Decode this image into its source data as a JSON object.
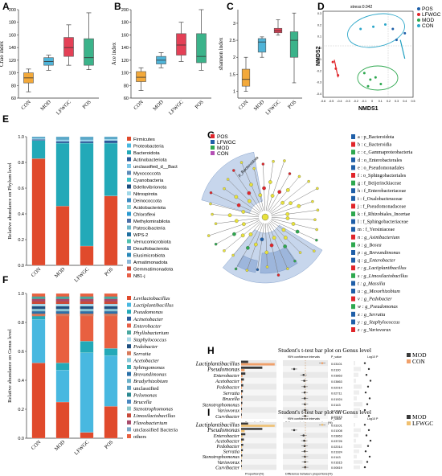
{
  "panels": {
    "A": {
      "letter": "A",
      "ylabel": "Chao index",
      "categories": [
        "CON",
        "MOD",
        "LFWGC",
        "POS"
      ],
      "colors": [
        "#f3a93a",
        "#4fb4d8",
        "#e44056",
        "#3bb38a"
      ],
      "boxes": [
        {
          "min": 70,
          "q1": 84,
          "median": 92,
          "q3": 100,
          "max": 106
        },
        {
          "min": 104,
          "q1": 112,
          "median": 118,
          "q3": 124,
          "max": 128
        },
        {
          "min": 112,
          "q1": 126,
          "median": 140,
          "q3": 156,
          "max": 176
        },
        {
          "min": 105,
          "q1": 112,
          "median": 124,
          "q3": 154,
          "max": 195
        }
      ],
      "ylim": [
        60,
        200
      ],
      "yticks": [
        60,
        80,
        100,
        120,
        140,
        160,
        180,
        200
      ]
    },
    "B": {
      "letter": "B",
      "ylabel": "Ace index",
      "categories": [
        "CON",
        "MOD",
        "LFWGC",
        "POS"
      ],
      "colors": [
        "#f3a93a",
        "#4fb4d8",
        "#e44056",
        "#3bb38a"
      ],
      "boxes": [
        {
          "min": 72,
          "q1": 86,
          "median": 93,
          "q3": 102,
          "max": 108
        },
        {
          "min": 108,
          "q1": 114,
          "median": 120,
          "q3": 126,
          "max": 132
        },
        {
          "min": 118,
          "q1": 128,
          "median": 144,
          "q3": 162,
          "max": 180
        },
        {
          "min": 104,
          "q1": 116,
          "median": 126,
          "q3": 162,
          "max": 200
        }
      ],
      "ylim": [
        60,
        200
      ],
      "yticks": [
        60,
        80,
        100,
        120,
        140,
        160,
        180,
        200
      ]
    },
    "C": {
      "letter": "C",
      "ylabel": "shannon index",
      "categories": [
        "CON",
        "MOD",
        "LFWGC",
        "POS"
      ],
      "colors": [
        "#f3a93a",
        "#4fb4d8",
        "#e44056",
        "#3bb38a"
      ],
      "boxes": [
        {
          "min": 1.0,
          "q1": 1.15,
          "median": 1.35,
          "q3": 1.65,
          "max": 2.0
        },
        {
          "min": 2.0,
          "q1": 2.15,
          "median": 2.45,
          "q3": 2.55,
          "max": 2.6
        },
        {
          "min": 2.65,
          "q1": 2.72,
          "median": 2.78,
          "q3": 2.85,
          "max": 3.1
        },
        {
          "min": 1.25,
          "q1": 2.0,
          "median": 2.5,
          "q3": 2.75,
          "max": 3.3
        }
      ],
      "ylim": [
        0.8,
        3.4
      ],
      "yticks": [
        1,
        1.5,
        2,
        2.5,
        3
      ]
    },
    "D": {
      "letter": "D",
      "stress": "stress:0.042",
      "xlabel": "NMDS1",
      "ylabel": "NMDS2",
      "legend": [
        {
          "label": "POS",
          "color": "#1f5fa8"
        },
        {
          "label": "LFWGC",
          "color": "#e0252a"
        },
        {
          "label": "MOD",
          "color": "#2ea84f"
        },
        {
          "label": "CON",
          "color": "#2ba6c9"
        }
      ],
      "xticks": [
        "-0.6",
        "-0.5",
        "-0.4",
        "-0.3",
        "-0.2",
        "-0.1",
        "0",
        "0.1",
        "0.2",
        "0.3",
        "0.4",
        "0.5"
      ],
      "yticks": [
        "0.3",
        "0.2",
        "0.1",
        "0",
        "-0.1",
        "-0.2",
        "-0.3",
        "-0.4"
      ]
    },
    "E": {
      "letter": "E",
      "ylabel": "Relative abundance on Phylum level",
      "categories": [
        "CON",
        "MOD",
        "LFWGC",
        "POS"
      ],
      "yticks": [
        "0.0",
        "0.2",
        "0.4",
        "0.6",
        "0.8",
        "1.0"
      ]
    },
    "F": {
      "letter": "F",
      "ylabel": "Relative abundance on Genus level",
      "categories": [
        "CON",
        "MOD",
        "LFWGC",
        "POS"
      ],
      "yticks": [
        "0.0",
        "0.2",
        "0.4",
        "0.6",
        "0.8",
        "1.0"
      ]
    },
    "G": {
      "letter": "G",
      "legend": [
        {
          "label": "POS",
          "color": "#e0252a"
        },
        {
          "label": "LFWGC",
          "color": "#1f5fa8"
        },
        {
          "label": "MOD",
          "color": "#2ea84f"
        },
        {
          "label": "CON",
          "color": "#b44fb4"
        }
      ],
      "clade_label": "p_Bacteroidota"
    },
    "H": {
      "letter": "H",
      "title": "Student's t-test bar plot on Genus level",
      "genera": [
        "Lactiplantibacillus",
        "Pseudomonas",
        "Enterobacter",
        "Acetobacter",
        "Pedobacter",
        "Serratia",
        "Brucella",
        "Stenotrophomonas",
        "Variovorax",
        "Curvibacter"
      ],
      "pvalues": [
        "0.03101",
        "0.0100",
        "0.03863",
        "0.03863",
        "0.02014",
        "0.02711",
        "0.01924",
        "0.0143",
        "0.01615",
        "0.00619"
      ],
      "legend": [
        {
          "label": "MOD",
          "color": "#3a3a3a"
        },
        {
          "label": "CON",
          "color": "#f0a06a"
        }
      ],
      "col1": "95% confidence intervals",
      "col2": "P_value",
      "col3": "Log10 P",
      "xlab1": "Proportion(%)",
      "xlab2": "Difference between proportions(%)"
    },
    "I": {
      "letter": "I",
      "title": "Student's t-test bar plot on Genus level",
      "genera": [
        "Lactiplantibacillus",
        "Pseudomonas",
        "Enterobacter",
        "Acetobacter",
        "Pedobacter",
        "Serratia",
        "Stenotrophomonas",
        "Variovorax",
        "Curvibacter"
      ],
      "pvalues": [
        "0.03101",
        "0.01008",
        "0.03863",
        "0.03726",
        "0.02014",
        "0.01924",
        "0.0143",
        "0.01615",
        "0.00819"
      ],
      "legend": [
        {
          "label": "MOD",
          "color": "#3a3a3a"
        },
        {
          "label": "LFWGC",
          "color": "#f0c070"
        }
      ],
      "col1": "95% confidence intervals",
      "col2": "P_value",
      "col3": "Log10 P",
      "xlab1": "Proportion(%)",
      "xlab2": "Difference between proportions(%)"
    }
  },
  "chart_data": [
    {
      "type": "box",
      "title": "",
      "ylabel": "Chao index",
      "categories": [
        "CON",
        "MOD",
        "LFWGC",
        "POS"
      ],
      "ylim": [
        60,
        200
      ],
      "series": [
        {
          "values": [
            [
              70,
              84,
              92,
              100,
              106
            ],
            [
              104,
              112,
              118,
              124,
              128
            ],
            [
              112,
              126,
              140,
              156,
              176
            ],
            [
              105,
              112,
              124,
              154,
              195
            ]
          ]
        }
      ]
    },
    {
      "type": "box",
      "title": "",
      "ylabel": "Ace index",
      "categories": [
        "CON",
        "MOD",
        "LFWGC",
        "POS"
      ],
      "ylim": [
        60,
        200
      ],
      "series": [
        {
          "values": [
            [
              72,
              86,
              93,
              102,
              108
            ],
            [
              108,
              114,
              120,
              126,
              132
            ],
            [
              118,
              128,
              144,
              162,
              180
            ],
            [
              104,
              116,
              126,
              162,
              200
            ]
          ]
        }
      ]
    },
    {
      "type": "box",
      "title": "",
      "ylabel": "shannon index",
      "categories": [
        "CON",
        "MOD",
        "LFWGC",
        "POS"
      ],
      "ylim": [
        0.8,
        3.4
      ],
      "series": [
        {
          "values": [
            [
              1.0,
              1.15,
              1.35,
              1.65,
              2.0
            ],
            [
              2.0,
              2.15,
              2.45,
              2.55,
              2.6
            ],
            [
              2.65,
              2.72,
              2.78,
              2.85,
              3.1
            ],
            [
              1.25,
              2.0,
              2.5,
              2.75,
              3.3
            ]
          ]
        }
      ]
    },
    {
      "type": "scatter",
      "title": "",
      "xlabel": "NMDS1",
      "ylabel": "NMDS2",
      "series": [
        {
          "name": "POS",
          "points": [
            [
              0.28,
              0.22
            ],
            [
              0.44,
              0.18
            ],
            [
              0.33,
              0.12
            ]
          ]
        },
        {
          "name": "LFWGC",
          "points": [
            [
              -0.52,
              -0.08
            ],
            [
              -0.48,
              -0.14
            ],
            [
              -0.45,
              -0.2
            ]
          ]
        },
        {
          "name": "MOD",
          "points": [
            [
              -0.1,
              -0.18
            ],
            [
              0.05,
              -0.22
            ],
            [
              0.12,
              -0.28
            ],
            [
              -0.05,
              -0.3
            ],
            [
              -0.02,
              -0.24
            ]
          ]
        },
        {
          "name": "CON",
          "points": [
            [
              -0.15,
              0.22
            ],
            [
              0.02,
              0.24
            ],
            [
              0.18,
              0.26
            ]
          ]
        }
      ]
    },
    {
      "type": "stacked-bar",
      "title": "",
      "ylabel": "Relative abundance on Phylum level",
      "categories": [
        "CON",
        "MOD",
        "LFWGC",
        "POS"
      ],
      "series": [
        {
          "name": "Firmicutes",
          "values": [
            0.83,
            0.46,
            0.15,
            0.54
          ]
        },
        {
          "name": "Proteobacteria",
          "values": [
            0.0,
            0.0,
            0.0,
            0.0
          ]
        },
        {
          "name": "Bacteroidota",
          "values": [
            0.14,
            0.49,
            0.8,
            0.41
          ]
        },
        {
          "name": "Actinobacteriota",
          "values": [
            0.01,
            0.015,
            0.015,
            0.02
          ]
        },
        {
          "name": "unclassified_d__Bact",
          "values": [
            0.005,
            0.01,
            0.01,
            0.01
          ]
        },
        {
          "name": "others",
          "values": [
            0.015,
            0.025,
            0.025,
            0.02
          ]
        }
      ]
    },
    {
      "type": "stacked-bar",
      "title": "",
      "ylabel": "Relative abundance on Genus level",
      "categories": [
        "CON",
        "MOD",
        "LFWGC",
        "POS"
      ],
      "series": [
        {
          "name": "Levilactobacillus",
          "values": [
            0.52,
            0.25,
            0.04,
            0.22
          ]
        },
        {
          "name": "Lactiplantibacillus",
          "values": [
            0.3,
            0.22,
            0.55,
            0.35
          ]
        },
        {
          "name": "Pseudomonas",
          "values": [
            0.03,
            0.05,
            0.08,
            0.05
          ]
        },
        {
          "name": "others",
          "values": [
            0.15,
            0.48,
            0.33,
            0.38
          ]
        }
      ]
    },
    {
      "type": "bar",
      "title": "Student's t-test bar plot on Genus level",
      "categories": [
        "Lactiplantibacillus",
        "Pseudomonas",
        "Enterobacter",
        "Acetobacter",
        "Pedobacter",
        "Serratia",
        "Brucella",
        "Stenotrophomonas",
        "Variovorax",
        "Curvibacter"
      ],
      "series": [
        {
          "name": "MOD",
          "values": [
            4,
            12,
            2.4,
            1.6,
            1.2,
            1.0,
            0.8,
            0.7,
            0.5,
            0.4
          ]
        },
        {
          "name": "CON",
          "values": [
            19,
            2,
            0.8,
            0.6,
            0.5,
            0.4,
            0.3,
            0.3,
            0.2,
            0.2
          ]
        }
      ]
    },
    {
      "type": "bar",
      "title": "Student's t-test bar plot on Genus level",
      "categories": [
        "Lactiplantibacillus",
        "Pseudomonas",
        "Enterobacter",
        "Acetobacter",
        "Pedobacter",
        "Serratia",
        "Stenotrophomonas",
        "Variovorax",
        "Curvibacter"
      ],
      "series": [
        {
          "name": "MOD",
          "values": [
            4,
            12,
            2.4,
            1.6,
            1.2,
            1.0,
            0.7,
            0.5,
            0.4
          ]
        },
        {
          "name": "LFWGC",
          "values": [
            19,
            2,
            0.8,
            0.6,
            0.5,
            0.4,
            0.3,
            0.2,
            0.2
          ]
        }
      ]
    }
  ],
  "phylum_legend": [
    {
      "name": "Firmicutes",
      "color": "#e04a2c"
    },
    {
      "name": "Proteobacteria",
      "color": "#48b8e0"
    },
    {
      "name": "Bacteroidota",
      "color": "#23a9b8"
    },
    {
      "name": "Actinobacteriota",
      "color": "#2a5a9a"
    },
    {
      "name": "unclassified_d__Bact",
      "color": "#7ec8e8"
    },
    {
      "name": "Myxococcota",
      "color": "#5a8ab8"
    },
    {
      "name": "Cyanobacteria",
      "color": "#3cc0c8"
    },
    {
      "name": "Bdellovibrionota",
      "color": "#1a4f80"
    },
    {
      "name": "Nitrospirota",
      "color": "#a0d8e8"
    },
    {
      "name": "Deinococcota",
      "color": "#3b8ac0"
    },
    {
      "name": "Acidobacteriota",
      "color": "#8ad0d8"
    },
    {
      "name": "Chloroflexi",
      "color": "#2a9ad0"
    },
    {
      "name": "Methylomirabilota",
      "color": "#4a70a8"
    },
    {
      "name": "Patescibacteria",
      "color": "#70b8c8"
    },
    {
      "name": "WPS-2",
      "color": "#1f6fa0"
    },
    {
      "name": "Verrucomicrobiota",
      "color": "#50c0b0"
    },
    {
      "name": "Desulfobacterota",
      "color": "#6090c0"
    },
    {
      "name": "Elusimicrobiota",
      "color": "#2888b8"
    },
    {
      "name": "Armatimonadota",
      "color": "#8cb8d8"
    },
    {
      "name": "Gemmatimonadota",
      "color": "#c84a3a"
    },
    {
      "name": "NB1-j",
      "color": "#e86048"
    }
  ],
  "genus_legend": [
    {
      "name": "Levilactobacillus",
      "color": "#e04a2c"
    },
    {
      "name": "Lactiplantibacillus",
      "color": "#48b8e0"
    },
    {
      "name": "Pseudomonas",
      "color": "#23a9b8"
    },
    {
      "name": "Acinetobacter",
      "color": "#2a5a9a"
    },
    {
      "name": "Enterobacter",
      "color": "#e86048"
    },
    {
      "name": "Phyllobacterium",
      "color": "#4aa8a0"
    },
    {
      "name": "Staphylococcus",
      "color": "#a8d8e8"
    },
    {
      "name": "Pedobacter",
      "color": "#1f4f80"
    },
    {
      "name": "Serratia",
      "color": "#d87a5a"
    },
    {
      "name": "Acetobacter",
      "color": "#88c8d8"
    },
    {
      "name": "Sphingomonas",
      "color": "#3cb0b8"
    },
    {
      "name": "Brevundimonas",
      "color": "#2a70a8"
    },
    {
      "name": "Bradyrhizobium",
      "color": "#6ab0c8"
    },
    {
      "name": "unclassified",
      "color": "#5aa0c0"
    },
    {
      "name": "Pelomonas",
      "color": "#2a8890"
    },
    {
      "name": "Brucella",
      "color": "#4a88c0"
    },
    {
      "name": "Stenotrophomonas",
      "color": "#8ac8c8"
    },
    {
      "name": "Limosilactobacillus",
      "color": "#c84a3a"
    },
    {
      "name": "Flavobacterium",
      "color": "#a84a6a"
    },
    {
      "name": "unclassified Bacteria",
      "color": "#7aa8c8"
    },
    {
      "name": "others",
      "color": "#e86040"
    }
  ],
  "tree_legend": [
    "a : p_Bacteroidota",
    "b : c_Bacteroidia",
    "c : c_Gammaproteobacteria",
    "d : o_Enterobacterales",
    "e : o_Pseudomonadales",
    "f : o_Sphingobacteriales",
    "g : f_Beijerinckiaceae",
    "h : f_Enterobacteriaceae",
    "i : f_Oxalobacteraceae",
    "j : f_Pseudomonadaceae",
    "k : f_Rhizobiales_Incertae",
    "l : f_Sphingobacteriaceae",
    "m : f_Yersiniaceae",
    "n : g_Asinibacterium",
    "o : g_Bosea",
    "p : g_Brevundimonas",
    "q : g_Enterobacter",
    "r : g_Lactiplantibacillus",
    "s : g_Limosilactobacillus",
    "t : g_Massilia",
    "u : g_Mesorhizobium",
    "v : g_Pedobacter",
    "w : g_Pseudomonas",
    "x : g_Serratia",
    "y : g_Staphylococcus",
    "z : g_Variovorax"
  ]
}
